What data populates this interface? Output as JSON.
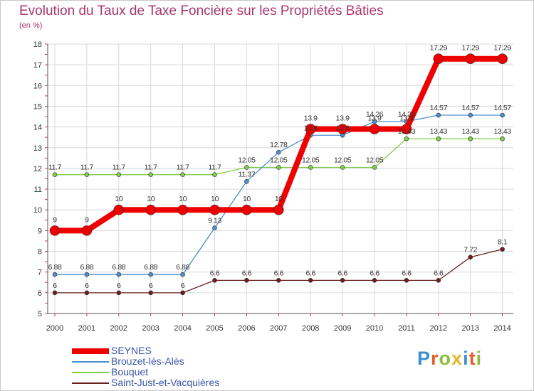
{
  "header": {
    "title": "Evolution du Taux de Taxe Foncière sur les Propriétés Bâties",
    "subtitle": "(en %)"
  },
  "brand": {
    "letters": [
      "P",
      "r",
      "o",
      "x",
      "i",
      "t",
      "i"
    ],
    "colors": [
      "#3a8fd0",
      "#e25f2a",
      "#8cbf3f",
      "#e8b62a",
      "#3a8fd0",
      "#e25f2a",
      "#8cbf3f"
    ]
  },
  "chart_data": {
    "type": "line",
    "title": "Evolution du Taux de Taxe Foncière sur les Propriétés Bâties",
    "ylabel": "(en %)",
    "x": [
      "2000",
      "2001",
      "2002",
      "2003",
      "2004",
      "2005",
      "2006",
      "2007",
      "2008",
      "2009",
      "2010",
      "2011",
      "2012",
      "2013",
      "2014"
    ],
    "ylim": [
      5,
      18
    ],
    "yticks": [
      "5",
      "6",
      "7",
      "8",
      "9",
      "10",
      "11",
      "12",
      "13",
      "14",
      "15",
      "16",
      "17",
      "18"
    ],
    "grid": true,
    "series": [
      {
        "name": "SEYNES",
        "color": "#ee0000",
        "values": [
          9,
          9,
          10,
          10,
          10,
          10,
          10,
          10,
          13.9,
          13.9,
          13.9,
          13.9,
          17.29,
          17.29,
          17.29
        ],
        "labels": [
          "9",
          "9",
          "10",
          "10",
          "10",
          "10",
          "10",
          "10",
          "13.9",
          "13.9",
          "13.9",
          "13.9",
          "17.29",
          "17.29",
          "17.29"
        ]
      },
      {
        "name": "Brouzet-lès-Alès",
        "color": "#4a8fcf",
        "values": [
          6.88,
          6.88,
          6.88,
          6.88,
          6.88,
          9.13,
          11.37,
          12.78,
          13.6,
          13.6,
          14.26,
          14.26,
          14.57,
          14.57,
          14.57
        ],
        "labels": [
          "6.88",
          "6.88",
          "6.88",
          "6.88",
          "6.88",
          "9.13",
          "11.37",
          "12.78",
          "13.6",
          "13.6",
          "14.26",
          "14.26",
          "14.57",
          "14.57",
          "14.57"
        ]
      },
      {
        "name": "Bouquet",
        "color": "#7fcd47",
        "values": [
          11.7,
          11.7,
          11.7,
          11.7,
          11.7,
          11.7,
          12.05,
          12.05,
          12.05,
          12.05,
          12.05,
          13.43,
          13.43,
          13.43,
          13.43
        ],
        "labels": [
          "11.7",
          "11.7",
          "11.7",
          "11.7",
          "11.7",
          "11.7",
          "12.05",
          "12.05",
          "12.05",
          "12.05",
          "12.05",
          "13.43",
          "13.43",
          "13.43",
          "13.43"
        ]
      },
      {
        "name": "Saint-Just-et-Vacquières",
        "color": "#6b1f1f",
        "values": [
          6,
          6,
          6,
          6,
          6,
          6.6,
          6.6,
          6.6,
          6.6,
          6.6,
          6.6,
          6.6,
          6.6,
          7.72,
          8.1
        ],
        "labels": [
          "6",
          "6",
          "6",
          "6",
          "6",
          "6.6",
          "6.6",
          "6.6",
          "6.6",
          "6.6",
          "6.6",
          "6.6",
          "6.6",
          "7.72",
          "8.1"
        ]
      }
    ]
  }
}
